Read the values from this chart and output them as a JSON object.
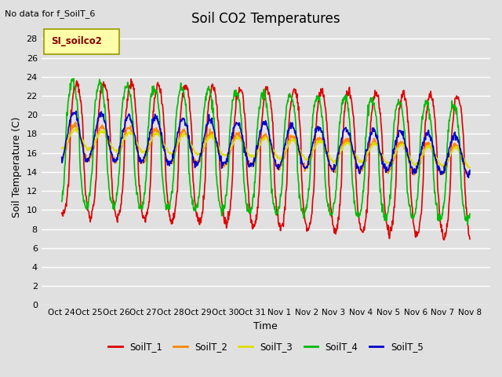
{
  "title": "Soil CO2 Temperatures",
  "ylabel": "Soil Temperature (C)",
  "xlabel": "Time",
  "annotation": "No data for f_SoilT_6",
  "legend_label": "SI_soilco2",
  "series_labels": [
    "SoilT_1",
    "SoilT_2",
    "SoilT_3",
    "SoilT_4",
    "SoilT_5"
  ],
  "series_colors": [
    "#dd0000",
    "#ff8800",
    "#dddd00",
    "#00bb00",
    "#0000cc"
  ],
  "ylim": [
    0,
    29
  ],
  "yticks": [
    0,
    2,
    4,
    6,
    8,
    10,
    12,
    14,
    16,
    18,
    20,
    22,
    24,
    26,
    28
  ],
  "xtick_labels": [
    "Oct 24",
    "Oct 25",
    "Oct 26",
    "Oct 27",
    "Oct 28",
    "Oct 29",
    "Oct 30",
    "Oct 31",
    "Nov 1",
    "Nov 2",
    "Nov 3",
    "Nov 4",
    "Nov 5",
    "Nov 6",
    "Nov 7",
    "Nov 8"
  ],
  "bg_color": "#e0e0e0",
  "plot_bg_color": "#e0e0e0",
  "grid_color": "#ffffff",
  "linewidth": 1.2,
  "n_points": 960,
  "days": 15
}
